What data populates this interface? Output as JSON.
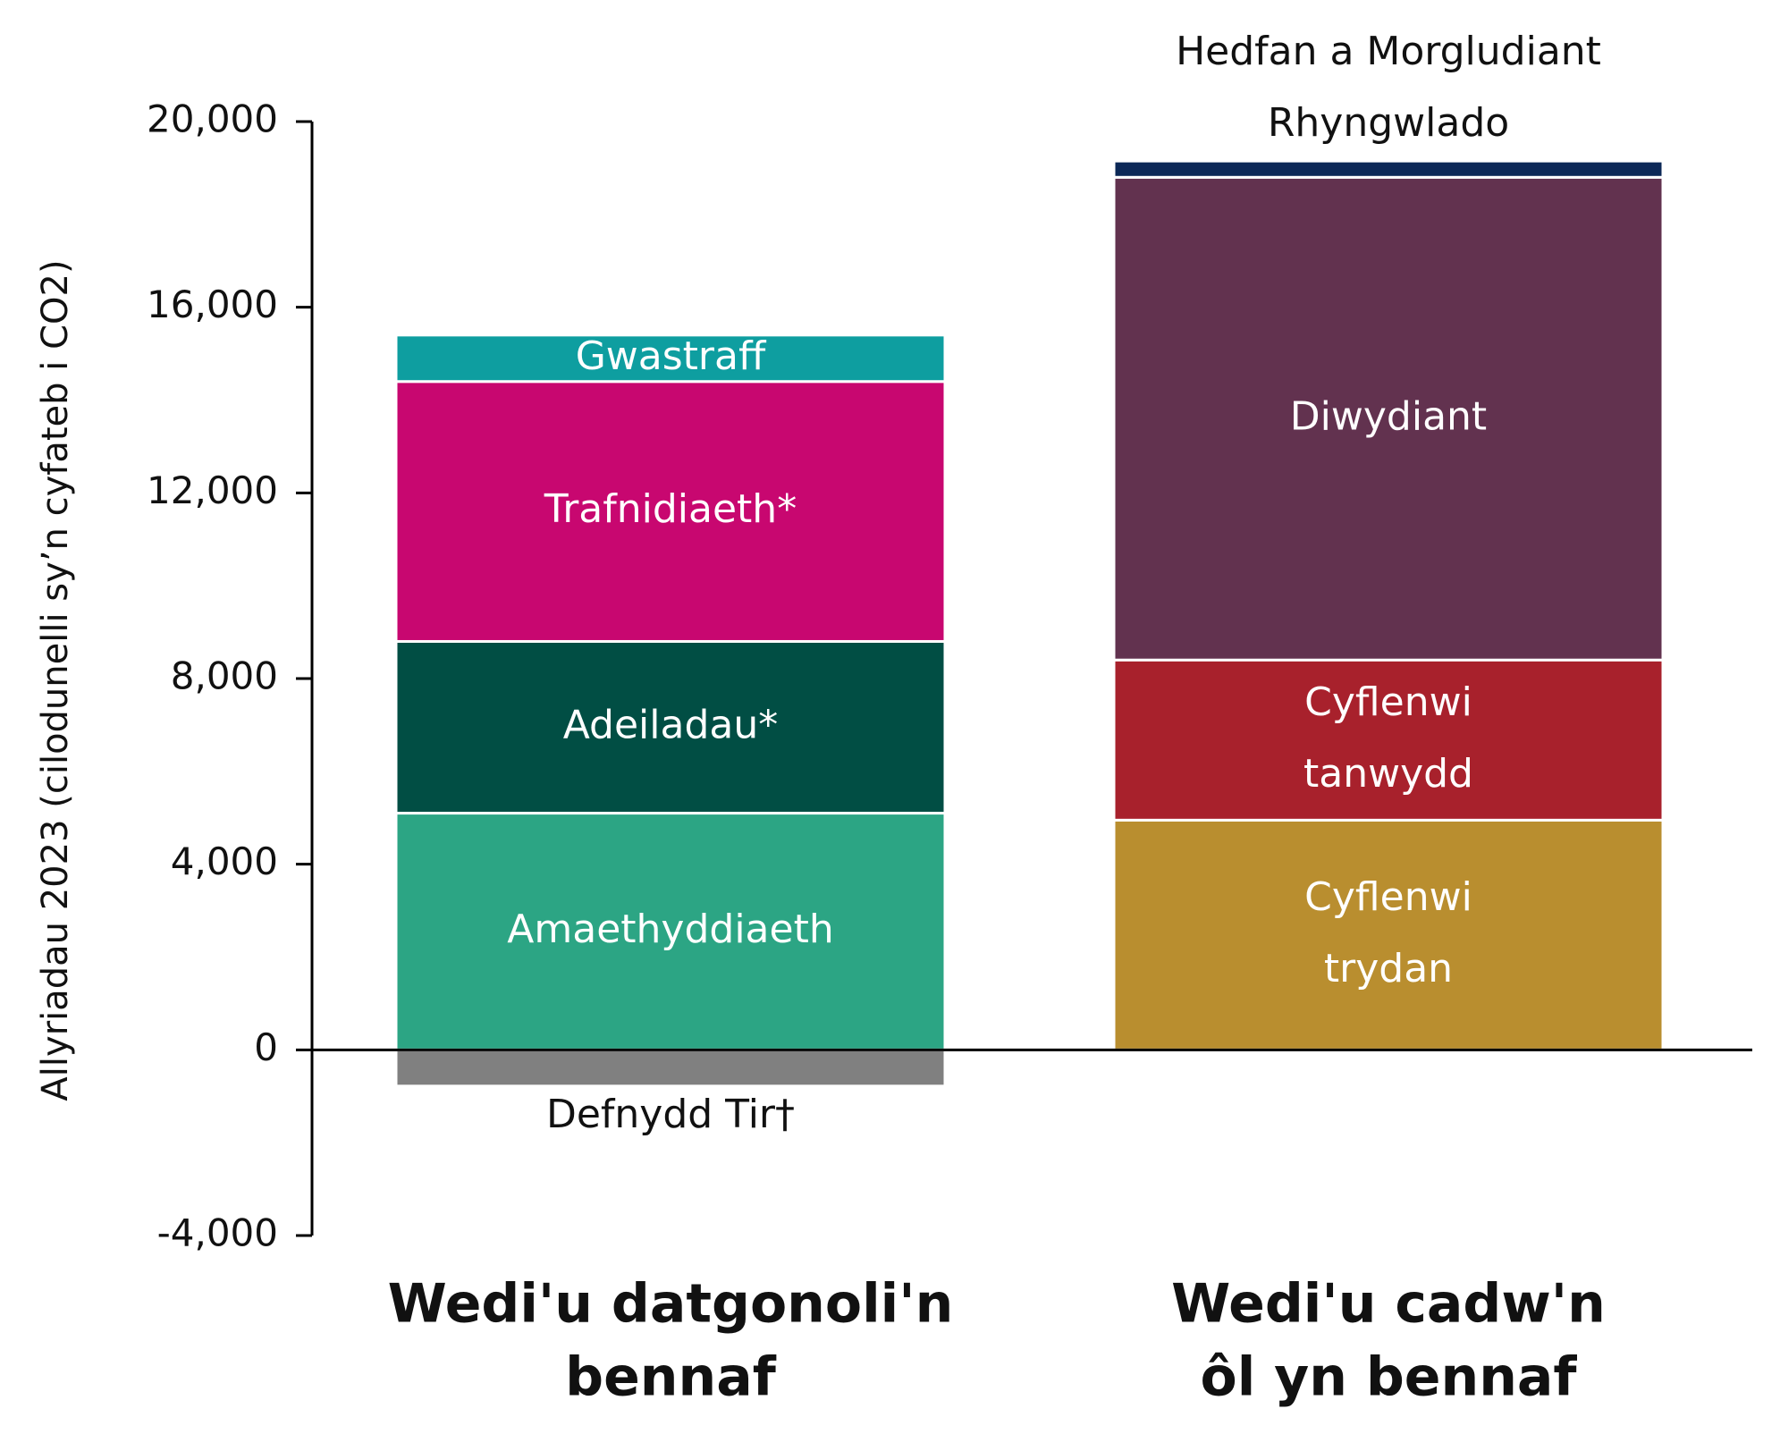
{
  "chart_data": {
    "type": "bar",
    "stacked": true,
    "title": "",
    "xlabel": "",
    "ylabel": "Allyriadau 2023 (cilodunelli sy’n cyfateb i CO2)",
    "ylim": [
      -4000,
      20000
    ],
    "yticks": [
      "-4,000",
      "0",
      "4,000",
      "8,000",
      "12,000",
      "16,000",
      "20,000"
    ],
    "ytick_values": [
      -4000,
      0,
      4000,
      8000,
      12000,
      16000,
      20000
    ],
    "grid": false,
    "legend": "none",
    "categories": [
      [
        "Wedi'u datgonoli'n",
        "bennaf"
      ],
      [
        "Wedi'u cadw'n",
        "ôl yn bennaf"
      ]
    ],
    "stacks": [
      {
        "segments": [
          {
            "label": [
              "Defnydd Tir†"
            ],
            "value": -780,
            "color": "#808080",
            "label_position": "below",
            "label_color": "#111111"
          },
          {
            "label": [
              "Amaethyddiaeth"
            ],
            "value": 5100,
            "color": "#2ca584",
            "label_position": "inside",
            "label_color": "#ffffff"
          },
          {
            "label": [
              "Adeiladau*"
            ],
            "value": 3700,
            "color": "#014e44",
            "label_position": "inside",
            "label_color": "#ffffff"
          },
          {
            "label": [
              "Trafnidiaeth*"
            ],
            "value": 5600,
            "color": "#c80770",
            "label_position": "inside",
            "label_color": "#ffffff"
          },
          {
            "label": [
              "Gwastraff"
            ],
            "value": 1000,
            "color": "#0e9ea0",
            "label_position": "inside",
            "label_color": "#ffffff"
          }
        ]
      },
      {
        "segments": [
          {
            "label": [
              "Cyflenwi",
              "trydan"
            ],
            "value": 4950,
            "color": "#b98e2f",
            "label_position": "inside",
            "label_color": "#ffffff"
          },
          {
            "label": [
              "Cyflenwi",
              "tanwydd"
            ],
            "value": 3450,
            "color": "#a8212c",
            "label_position": "inside",
            "label_color": "#ffffff"
          },
          {
            "label": [
              "Diwydiant"
            ],
            "value": 10400,
            "color": "#62324f",
            "label_position": "inside",
            "label_color": "#ffffff"
          },
          {
            "label": [
              "Hedfan a Morgludiant",
              "Rhyngwlado"
            ],
            "value": 350,
            "color": "#0c2857",
            "label_position": "above",
            "label_color": "#111111"
          }
        ]
      }
    ]
  }
}
